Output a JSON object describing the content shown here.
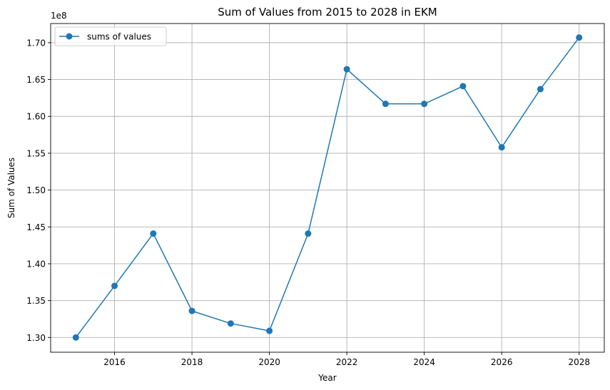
{
  "chart_data": {
    "type": "line",
    "title": "Sum of Values from 2015 to 2028 in EKM",
    "xlabel": "Year",
    "ylabel": "Sum of Values",
    "y_offset_label": "1e8",
    "grid": true,
    "legend_position": "top-left",
    "xlim": [
      2014.35,
      2028.65
    ],
    "ylim": [
      128000000,
      172600000
    ],
    "x_ticks": [
      2016,
      2018,
      2020,
      2022,
      2024,
      2026,
      2028
    ],
    "x_tick_labels": [
      "2016",
      "2018",
      "2020",
      "2022",
      "2024",
      "2026",
      "2028"
    ],
    "y_ticks": [
      130000000,
      135000000,
      140000000,
      145000000,
      150000000,
      155000000,
      160000000,
      165000000,
      170000000
    ],
    "y_tick_labels": [
      "1.30",
      "1.35",
      "1.40",
      "1.45",
      "1.50",
      "1.55",
      "1.60",
      "1.65",
      "1.70"
    ],
    "series": [
      {
        "name": "sums of values",
        "color": "#1f77b4",
        "marker": "circle",
        "x": [
          2015,
          2016,
          2017,
          2018,
          2019,
          2020,
          2021,
          2022,
          2023,
          2024,
          2025,
          2026,
          2027,
          2028
        ],
        "values": [
          130000000,
          137000000,
          144100000,
          133600000,
          131900000,
          130900000,
          144100000,
          166400000,
          161700000,
          161700000,
          164100000,
          155800000,
          163700000,
          170700000
        ]
      }
    ]
  }
}
